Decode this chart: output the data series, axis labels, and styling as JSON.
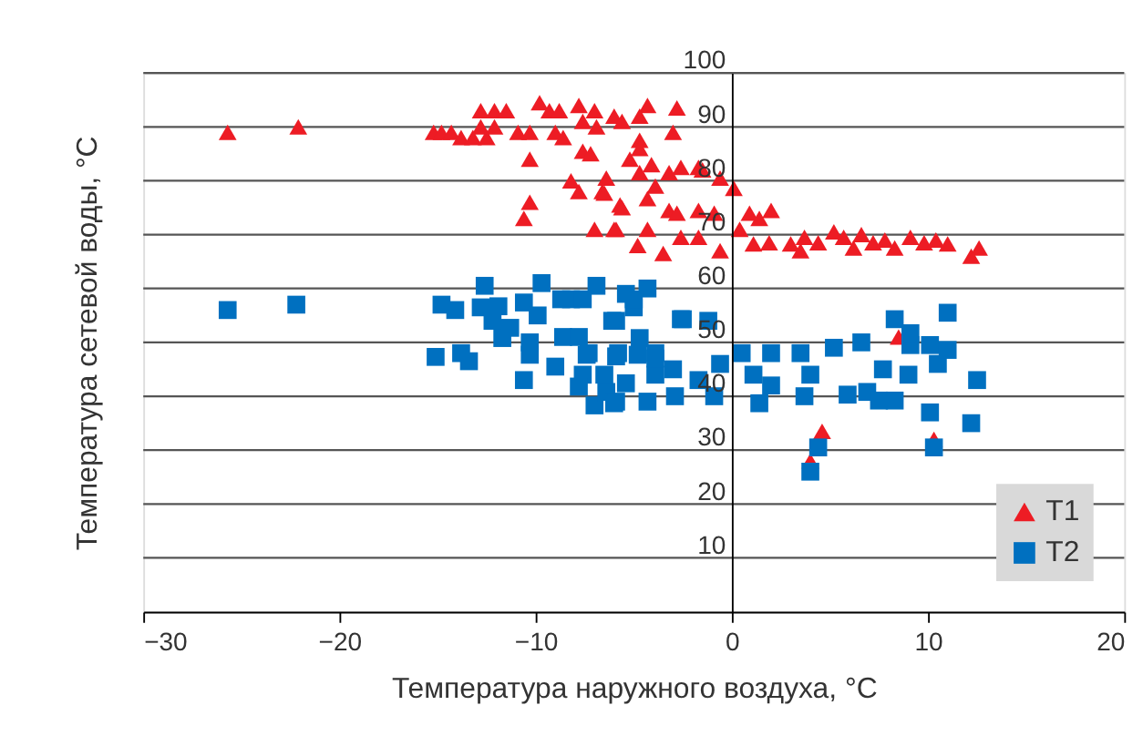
{
  "chart_data": {
    "type": "scatter",
    "xlabel": "Температура наружного воздуха, °C",
    "ylabel": "Температура сетевой воды, °C",
    "xlim": [
      -30,
      20
    ],
    "xticks": [
      -30,
      -20,
      -10,
      0,
      10,
      20
    ],
    "ylim": [
      0,
      100
    ],
    "yticks": [
      10,
      20,
      30,
      40,
      50,
      60,
      70,
      80,
      90,
      100
    ],
    "grid": "y",
    "legend": "bottom right",
    "series": [
      {
        "name": "T1",
        "color": "#ed1c24",
        "marker": "triangle",
        "x": [
          -25.7,
          -22.1,
          -15.2,
          -14.8,
          -14.3,
          -13.8,
          -13.2,
          -12.5,
          -12.8,
          -12.1,
          -11.5,
          -12.8,
          -12.1,
          -10.9,
          -10.3,
          -10.3,
          -10.3,
          -10.6,
          -9.8,
          -9.3,
          -8.8,
          -9.0,
          -8.6,
          -7.8,
          -7.0,
          -6.0,
          -7.6,
          -6.9,
          -7.6,
          -7.2,
          -8.2,
          -7.8,
          -6.4,
          -6.6,
          -5.7,
          -7.0,
          -5.9,
          -5.6,
          -4.7,
          -4.3,
          -4.7,
          -5.2,
          -4.1,
          -4.7,
          -3.9,
          -4.3,
          -4.3,
          -4.8,
          -3.5,
          -2.8,
          -3.0,
          -4.7,
          -6.5,
          -5.6,
          -3.2,
          -2.6,
          -1.7,
          -1.5,
          -0.6,
          0.1,
          -6.0,
          -3.2,
          -2.8,
          -1.7,
          -0.9,
          -2.6,
          -1.7,
          -0.6,
          0.4,
          0.9,
          1.4,
          2.0,
          1.1,
          1.9,
          3.0,
          3.5,
          3.7,
          4.4,
          5.2,
          5.7,
          6.6,
          6.2,
          7.2,
          7.8,
          8.3,
          9.1,
          9.8,
          10.4,
          11.0,
          12.2,
          12.6,
          8.5,
          4.6,
          4.0,
          10.3
        ],
        "values": [
          89,
          90,
          89,
          89,
          89,
          88,
          88,
          88,
          93,
          93,
          93,
          90,
          90,
          89,
          89,
          84,
          76,
          73,
          94.5,
          93,
          93,
          89,
          88,
          94,
          93,
          92,
          91,
          90,
          85.5,
          85,
          80,
          78,
          80.5,
          78,
          75.5,
          71,
          71,
          91,
          92,
          94,
          87.5,
          84,
          83,
          81.5,
          79,
          76.7,
          71,
          68,
          66.5,
          93.5,
          89,
          86,
          77.7,
          75,
          81.5,
          82.5,
          82.5,
          82,
          80.5,
          78.6,
          71,
          74.5,
          74,
          74.5,
          74,
          69.5,
          69.5,
          67,
          71,
          74,
          73,
          74.5,
          68.3,
          68.5,
          68.3,
          67,
          69.5,
          68.5,
          70.5,
          69.5,
          70,
          67.5,
          68.5,
          69,
          67.5,
          69.5,
          68.5,
          69,
          68.3,
          66,
          67.5,
          51,
          33.5,
          28,
          32
        ]
      },
      {
        "name": "T2",
        "color": "#0070c0",
        "marker": "square",
        "x": [
          -25.7,
          -22.2,
          -15.1,
          -14.8,
          -14.1,
          -13.8,
          -13.4,
          -12.6,
          -12.8,
          -11.9,
          -12.2,
          -11.7,
          -11.3,
          -10.6,
          -9.7,
          -10.3,
          -10.3,
          -10.6,
          -9.9,
          -9.0,
          -8.7,
          -8.2,
          -7.6,
          -6.9,
          -8.6,
          -7.8,
          -7.4,
          -7.6,
          -7.8,
          -7.0,
          -6.5,
          -6.4,
          -5.9,
          -5.9,
          -5.9,
          -5.4,
          -5.0,
          -4.3,
          -5.4,
          -4.7,
          -4.8,
          -3.9,
          -4.3,
          -3.9,
          -3.0,
          -2.9,
          -2.6,
          -5.0,
          -6.1,
          -2.5,
          -1.2,
          -7.3,
          -5.8,
          -6.0,
          -3.9,
          -1.7,
          -0.9,
          -0.6,
          0.5,
          1.1,
          1.4,
          2.0,
          2.0,
          3.5,
          3.7,
          4.0,
          4.4,
          4.0,
          5.2,
          5.9,
          6.6,
          6.9,
          7.5,
          7.7,
          8.3,
          8.3,
          9.0,
          9.1,
          9.1,
          10.1,
          10.5,
          11.0,
          11.0,
          10.1,
          10.3,
          12.5,
          12.2
        ],
        "values": [
          56,
          57,
          47.3,
          57,
          56,
          48,
          46.5,
          60.5,
          56.5,
          56.7,
          54,
          50.8,
          52.7,
          57.4,
          61,
          50,
          47.7,
          43,
          55,
          45.5,
          58,
          58,
          58,
          60.5,
          51,
          51,
          47.7,
          44,
          41.8,
          38.3,
          44,
          40.8,
          54,
          47.4,
          39,
          59,
          56.5,
          60,
          42.4,
          50.8,
          47.7,
          48,
          39,
          44,
          45,
          40,
          54.3,
          58,
          54,
          54.3,
          54,
          48,
          48,
          38.7,
          47,
          43,
          40,
          46,
          48,
          44,
          38.7,
          42,
          48,
          48,
          40,
          44,
          30.5,
          26,
          49,
          40.3,
          50,
          40.8,
          39.2,
          45,
          54.3,
          39.2,
          44,
          49.5,
          51.7,
          49.5,
          46,
          55.5,
          48.6,
          37,
          30.5,
          43,
          35
        ]
      }
    ]
  }
}
